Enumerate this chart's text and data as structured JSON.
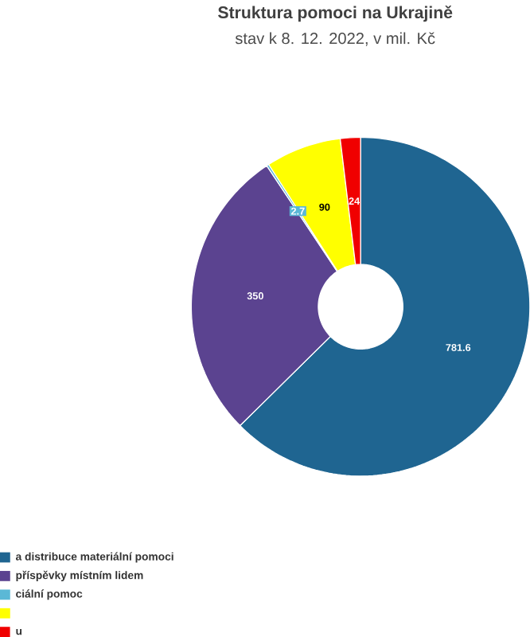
{
  "chart_data": {
    "type": "donut",
    "title": "Struktura pomoci na Ukrajině",
    "subtitle": "stav k 8. 12. 2022, v mil. Kč",
    "categories": [
      "a distribuce materiální pomoci",
      "příspěvky místním lidem",
      "ciální pomoc",
      null,
      "u"
    ],
    "values": [
      781.6,
      350,
      2.7,
      90,
      24
    ],
    "colors": [
      "#1f6591",
      "#5b4390",
      "#5bb8d6",
      "#ffff00",
      "#f00000"
    ],
    "data_labels": true,
    "legend": "bottom left"
  }
}
